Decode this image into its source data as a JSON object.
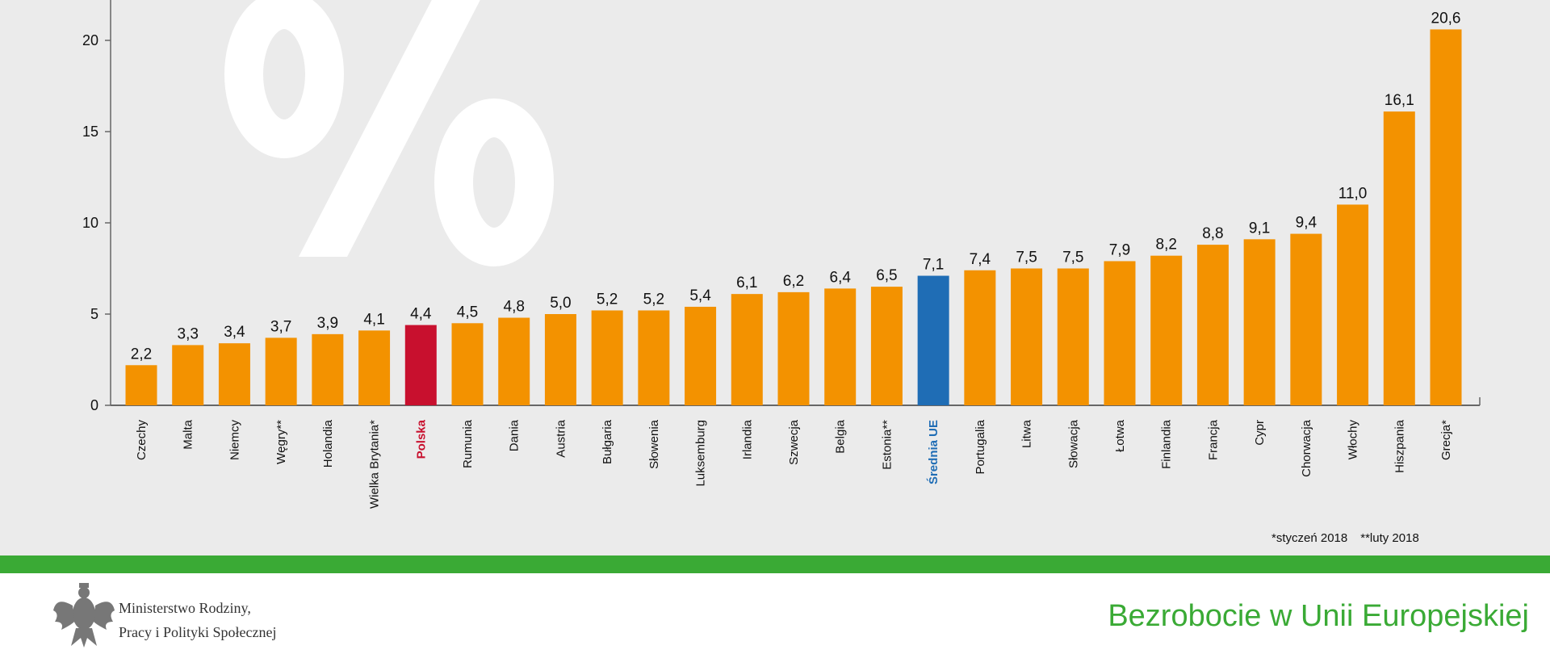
{
  "chart_data": {
    "type": "bar",
    "title": "Bezrobocie w Unii Europejskiej",
    "watermark": "%",
    "xlabel": "",
    "ylabel": "",
    "ylim": [
      0,
      22
    ],
    "yticks": [
      0,
      5,
      10,
      15,
      20
    ],
    "grid": false,
    "categories": [
      "Czechy",
      "Malta",
      "Niemcy",
      "Węgry**",
      "Holandia",
      "Wielka Brytania*",
      "Polska",
      "Rumunia",
      "Dania",
      "Austria",
      "Bułgaria",
      "Słowenia",
      "Luksemburg",
      "Irlandia",
      "Szwecja",
      "Belgia",
      "Estonia**",
      "Średnia UE",
      "Portugalia",
      "Litwa",
      "Słowacja",
      "Łotwa",
      "Finlandia",
      "Francja",
      "Cypr",
      "Chorwacja",
      "Włochy",
      "Hiszpania",
      "Grecja*"
    ],
    "values": [
      2.2,
      3.3,
      3.4,
      3.7,
      3.9,
      4.1,
      4.4,
      4.5,
      4.8,
      5.0,
      5.2,
      5.2,
      5.4,
      6.1,
      6.2,
      6.4,
      6.5,
      7.1,
      7.4,
      7.5,
      7.5,
      7.9,
      8.2,
      8.8,
      9.1,
      9.4,
      11.0,
      16.1,
      20.6
    ],
    "value_labels": [
      "2,2",
      "3,3",
      "3,4",
      "3,7",
      "3,9",
      "4,1",
      "4,4",
      "4,5",
      "4,8",
      "5,0",
      "5,2",
      "5,2",
      "5,4",
      "6,1",
      "6,2",
      "6,4",
      "6,5",
      "7,1",
      "7,4",
      "7,5",
      "7,5",
      "7,9",
      "8,2",
      "8,8",
      "9,1",
      "9,4",
      "11,0",
      "16,1",
      "20,6"
    ],
    "highlight": {
      "Polska": "#c8102e",
      "Średnia UE": "#1f6db5"
    },
    "colors": {
      "default": "#f39200",
      "highlight_poland": "#c8102e",
      "highlight_eu": "#1f6db5"
    },
    "footnotes": [
      "*styczeń 2018",
      "**luty 2018"
    ]
  },
  "footer": {
    "ministry_line1": "Ministerstwo Rodziny,",
    "ministry_line2": "Pracy i Polityki Społecznej",
    "title": "Bezrobocie w Unii Europejskiej"
  }
}
